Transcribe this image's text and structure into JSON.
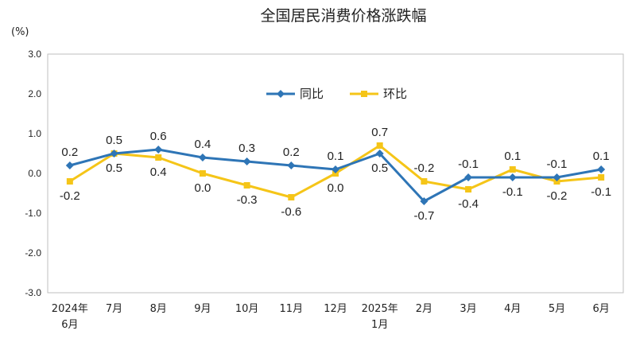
{
  "chart_data": {
    "type": "line",
    "title": "全国居民消费价格涨跌幅",
    "unit_label": "(%)",
    "ylim": [
      -3.0,
      3.0
    ],
    "yticks": [
      "3.0",
      "2.0",
      "1.0",
      "0.0",
      "-1.0",
      "-2.0",
      "-3.0"
    ],
    "ytick_values": [
      3,
      2,
      1,
      0,
      -1,
      -2,
      -3
    ],
    "categories": [
      [
        "2024年",
        "6月"
      ],
      [
        "7月"
      ],
      [
        "8月"
      ],
      [
        "9月"
      ],
      [
        "10月"
      ],
      [
        "11月"
      ],
      [
        "12月"
      ],
      [
        "2025年",
        "1月"
      ],
      [
        "2月"
      ],
      [
        "3月"
      ],
      [
        "4月"
      ],
      [
        "5月"
      ],
      [
        "6月"
      ]
    ],
    "legend_position": "top-center",
    "series": [
      {
        "name": "同比",
        "color": "#2e75b6",
        "marker": "diamond",
        "values": [
          0.2,
          0.5,
          0.6,
          0.4,
          0.3,
          0.2,
          0.1,
          0.5,
          -0.7,
          -0.1,
          -0.1,
          -0.1,
          0.1
        ],
        "labels": [
          "0.2",
          "0.5",
          "0.6",
          "0.4",
          "0.3",
          "0.2",
          "0.1",
          "0.5",
          "-0.7",
          "-0.1",
          "-0.1",
          "-0.1",
          "0.1"
        ],
        "label_pos": [
          "above",
          "above",
          "above",
          "above",
          "above",
          "above",
          "above",
          "below",
          "below",
          "above",
          "below",
          "above",
          "above"
        ]
      },
      {
        "name": "环比",
        "color": "#f5c518",
        "marker": "square",
        "values": [
          -0.2,
          0.5,
          0.4,
          0.0,
          -0.3,
          -0.6,
          0.0,
          0.7,
          -0.2,
          -0.4,
          0.1,
          -0.2,
          -0.1
        ],
        "labels": [
          "-0.2",
          "0.5",
          "0.4",
          "0.0",
          "-0.3",
          "-0.6",
          "0.0",
          "0.7",
          "-0.2",
          "-0.4",
          "0.1",
          "-0.2",
          "-0.1"
        ],
        "label_pos": [
          "below",
          "below",
          "below",
          "below",
          "below",
          "below",
          "below",
          "above",
          "above",
          "below",
          "above",
          "below",
          "below"
        ]
      }
    ]
  }
}
